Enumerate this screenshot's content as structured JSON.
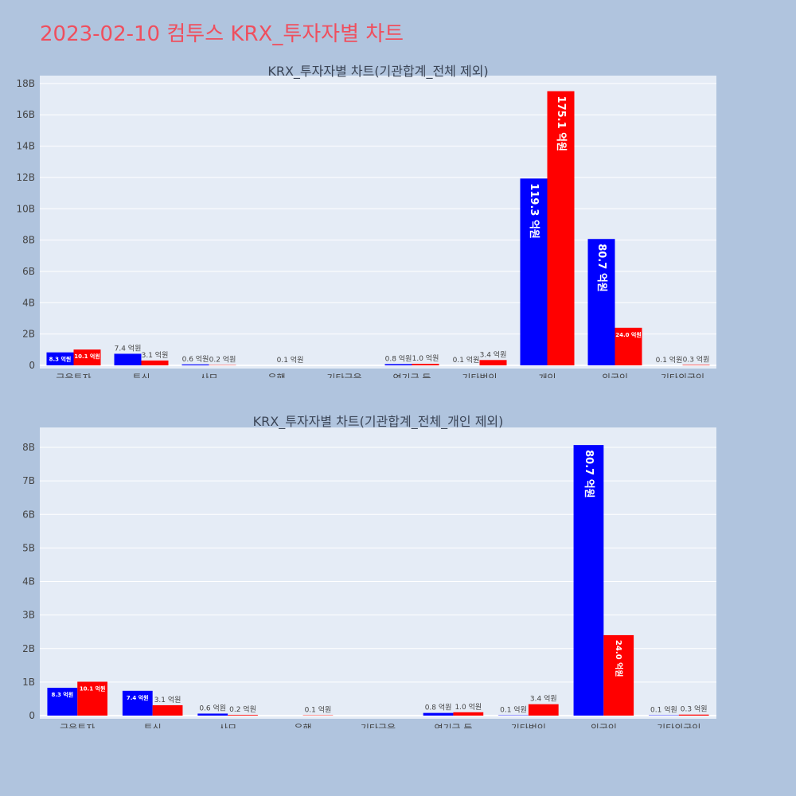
{
  "page_title": "2023-02-10 컴투스 KRX_투자자별 차트",
  "colors": {
    "buy": "#0000ff",
    "sell": "#ff0000",
    "plot_bg": "#e5ecf6",
    "page_bg": "#b0c4de",
    "title": "#ef4f5e"
  },
  "chart_data": [
    {
      "type": "bar",
      "title": "KRX_투자자별 차트(기관합계_전체 제외)",
      "categories": [
        "금융투자",
        "투신",
        "사모",
        "은행",
        "기타금융",
        "연기금 등",
        "기타법인",
        "개인",
        "외국인",
        "기타외국인"
      ],
      "series": [
        {
          "values": [
            0.83,
            0.74,
            0.06,
            0,
            0,
            0.08,
            0.01,
            11.93,
            8.07,
            0.01
          ],
          "labels": [
            "8.3 억원",
            "7.4 억원",
            "0.6 억원",
            "",
            "",
            "0.8 억원",
            "0.1 억원",
            "119.3 억원",
            "80.7 억원",
            "0.1 억원"
          ]
        },
        {
          "values": [
            1.01,
            0.31,
            0.02,
            0.01,
            0,
            0.1,
            0.34,
            17.51,
            2.4,
            0.03
          ],
          "labels": [
            "10.1 억원",
            "3.1 억원",
            "0.2 억원",
            "0.1 억원",
            "",
            "1.0 억원",
            "3.4 억원",
            "175.1 억원",
            "24.0 억원",
            "0.3 억원"
          ]
        }
      ],
      "ylim": [
        0,
        18.3
      ],
      "yticks": [
        0,
        2,
        4,
        6,
        8,
        10,
        12,
        14,
        16,
        18
      ],
      "ytick_labels": [
        "0",
        "2B",
        "4B",
        "6B",
        "8B",
        "10B",
        "12B",
        "14B",
        "16B",
        "18B"
      ],
      "grid": true
    },
    {
      "type": "bar",
      "title": "KRX_투자자별 차트(기관합계_전체_개인 제외)",
      "categories": [
        "금융투자",
        "투신",
        "사모",
        "은행",
        "기타금융",
        "연기금 등",
        "기타법인",
        "외국인",
        "기타외국인"
      ],
      "series": [
        {
          "values": [
            0.83,
            0.74,
            0.06,
            0,
            0,
            0.08,
            0.01,
            8.07,
            0.01
          ],
          "labels": [
            "8.3 억원",
            "7.4 억원",
            "0.6 억원",
            "",
            "",
            "0.8 억원",
            "0.1 억원",
            "80.7 억원",
            "0.1 억원"
          ]
        },
        {
          "values": [
            1.01,
            0.31,
            0.02,
            0.01,
            0,
            0.1,
            0.34,
            2.4,
            0.03
          ],
          "labels": [
            "10.1 억원",
            "3.1 억원",
            "0.2 억원",
            "0.1 억원",
            "",
            "1.0 억원",
            "3.4 억원",
            "24.0 억원",
            "0.3 억원"
          ]
        }
      ],
      "ylim": [
        0,
        8.5
      ],
      "yticks": [
        0,
        1,
        2,
        3,
        4,
        5,
        6,
        7,
        8
      ],
      "ytick_labels": [
        "0",
        "1B",
        "2B",
        "3B",
        "4B",
        "5B",
        "6B",
        "7B",
        "8B"
      ],
      "grid": true
    }
  ]
}
